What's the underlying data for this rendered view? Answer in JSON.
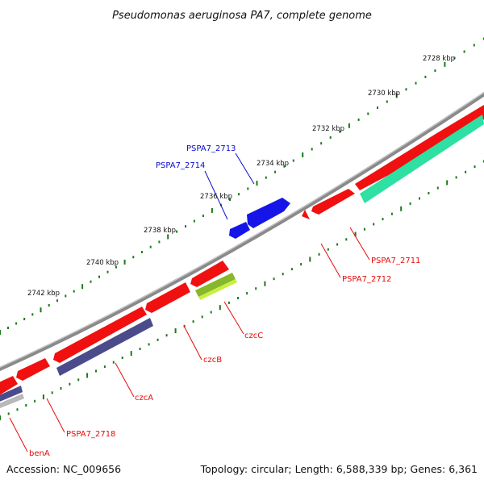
{
  "title": "Pseudomonas aeruginosa PA7, complete genome",
  "footer": {
    "accession": "Accession: NC_009656",
    "summary": "Topology: circular; Length: 6,588,339 bp; Genes: 6,361"
  },
  "ticks": [
    {
      "label": "2728 kbp"
    },
    {
      "label": "2730 kbp"
    },
    {
      "label": "2732 kbp"
    },
    {
      "label": "2734 kbp"
    },
    {
      "label": "2736 kbp"
    },
    {
      "label": "2738 kbp"
    },
    {
      "label": "2740 kbp"
    },
    {
      "label": "2742 kbp"
    }
  ],
  "genes": [
    {
      "label": "PSPA7_2713",
      "strand": "forward",
      "color": "#0a0ad2"
    },
    {
      "label": "PSPA7_2714",
      "strand": "forward",
      "color": "#0a0ad2"
    },
    {
      "label": "PSPA7_2711",
      "strand": "reverse",
      "color": "#e80a0a"
    },
    {
      "label": "PSPA7_2712",
      "strand": "reverse",
      "color": "#e80a0a"
    },
    {
      "label": "czcC",
      "strand": "reverse",
      "color": "#e80a0a"
    },
    {
      "label": "czcB",
      "strand": "reverse",
      "color": "#e80a0a"
    },
    {
      "label": "czcA",
      "strand": "reverse",
      "color": "#e80a0a"
    },
    {
      "label": "PSPA7_2718",
      "strand": "reverse",
      "color": "#e80a0a"
    },
    {
      "label": "benA",
      "strand": "reverse",
      "color": "#e80a0a"
    }
  ],
  "colors": {
    "backbone": "#888888",
    "tick_dots": "#1a7a1a",
    "forward_cds": "#0a0af0",
    "reverse_cds": "#f01010",
    "cog_teal": "#30e0a0",
    "cog_olive": "#a0e030",
    "cog_purple": "#4a4a90",
    "cog_gray": "#b0b0b0",
    "label_blue": "#0a0ad2",
    "label_red": "#e80a0a"
  }
}
